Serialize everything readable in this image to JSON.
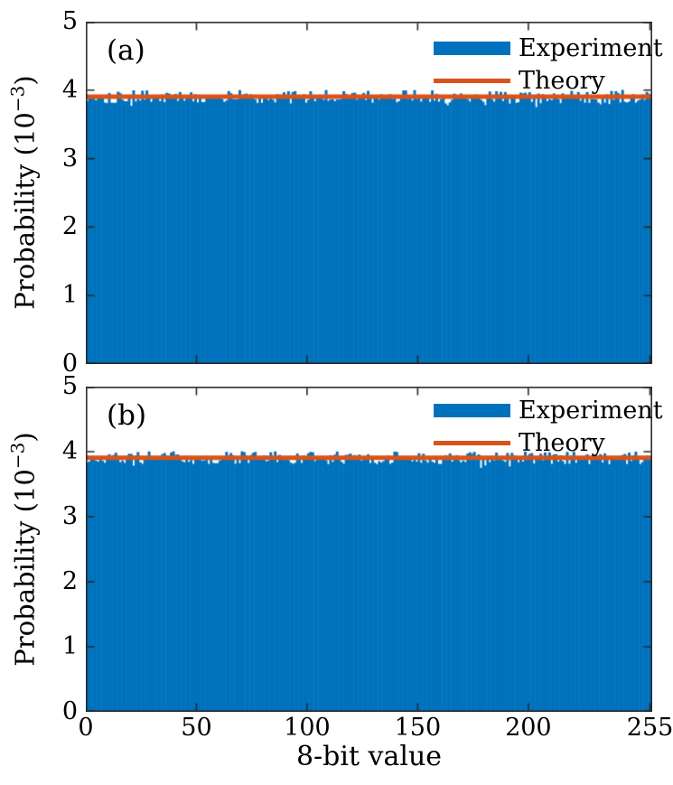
{
  "figure": {
    "xlabel": "8-bit value",
    "ylabel_prefix": "Probability (10",
    "ylabel_sup": "−3",
    "ylabel_suffix": ")",
    "colors": {
      "experiment_blue": "#0072BD",
      "theory_orange": "#D95319",
      "axis": "#262626",
      "background": "#FFFFFF",
      "text": "#000000"
    }
  },
  "legend": {
    "experiment": "Experiment",
    "theory": "Theory"
  },
  "panels": [
    {
      "label": "(a)"
    },
    {
      "label": "(b)"
    }
  ],
  "chart_data": [
    {
      "type": "bar",
      "panel": "(a)",
      "xlabel": "8-bit value",
      "ylabel": "Probability (10^-3)",
      "xlim": [
        0,
        256
      ],
      "ylim": [
        0,
        5
      ],
      "xticks": [
        0,
        50,
        100,
        150,
        200,
        255
      ],
      "xtick_labels": [
        "0",
        "50",
        "100",
        "150",
        "200",
        "255"
      ],
      "yticks": [
        0,
        1,
        2,
        3,
        4,
        5
      ],
      "ytick_labels": [
        "0",
        "1",
        "2",
        "3",
        "4",
        "5"
      ],
      "grid": false,
      "legend_position": "upper right",
      "legend_entries": [
        "Experiment",
        "Theory"
      ],
      "n_bins": 256,
      "bin_width": 1,
      "uniform_mean_1e3": 3.906,
      "noise_half_range_1e3": 0.1,
      "dip_probability": 0.07,
      "dip_depth_1e3": 0.07,
      "seed": 101,
      "series": [
        {
          "name": "Experiment",
          "type": "bar",
          "color": "#0072BD",
          "description": "256-bin histogram of measured 8-bit values; nearly uniform at 1/256 = 3.906e-3 with small statistical fluctuations (approx. 3.78e-3 to 4.02e-3)"
        },
        {
          "name": "Theory",
          "type": "line",
          "color": "#D95319",
          "value_1e3": 3.906
        }
      ]
    },
    {
      "type": "bar",
      "panel": "(b)",
      "xlabel": "8-bit value",
      "ylabel": "Probability (10^-3)",
      "xlim": [
        0,
        256
      ],
      "ylim": [
        0,
        5
      ],
      "xticks": [
        0,
        50,
        100,
        150,
        200,
        255
      ],
      "xtick_labels": [
        "0",
        "50",
        "100",
        "150",
        "200",
        "255"
      ],
      "yticks": [
        0,
        1,
        2,
        3,
        4,
        5
      ],
      "ytick_labels": [
        "0",
        "1",
        "2",
        "3",
        "4",
        "5"
      ],
      "grid": false,
      "legend_position": "upper right",
      "legend_entries": [
        "Experiment",
        "Theory"
      ],
      "n_bins": 256,
      "bin_width": 1,
      "uniform_mean_1e3": 3.906,
      "noise_half_range_1e3": 0.1,
      "dip_probability": 0.07,
      "dip_depth_1e3": 0.07,
      "seed": 202,
      "series": [
        {
          "name": "Experiment",
          "type": "bar",
          "color": "#0072BD",
          "description": "256-bin histogram of measured 8-bit values; nearly uniform at 1/256 = 3.906e-3 with small statistical fluctuations (approx. 3.78e-3 to 4.02e-3)"
        },
        {
          "name": "Theory",
          "type": "line",
          "color": "#D95319",
          "value_1e3": 3.906
        }
      ]
    }
  ]
}
